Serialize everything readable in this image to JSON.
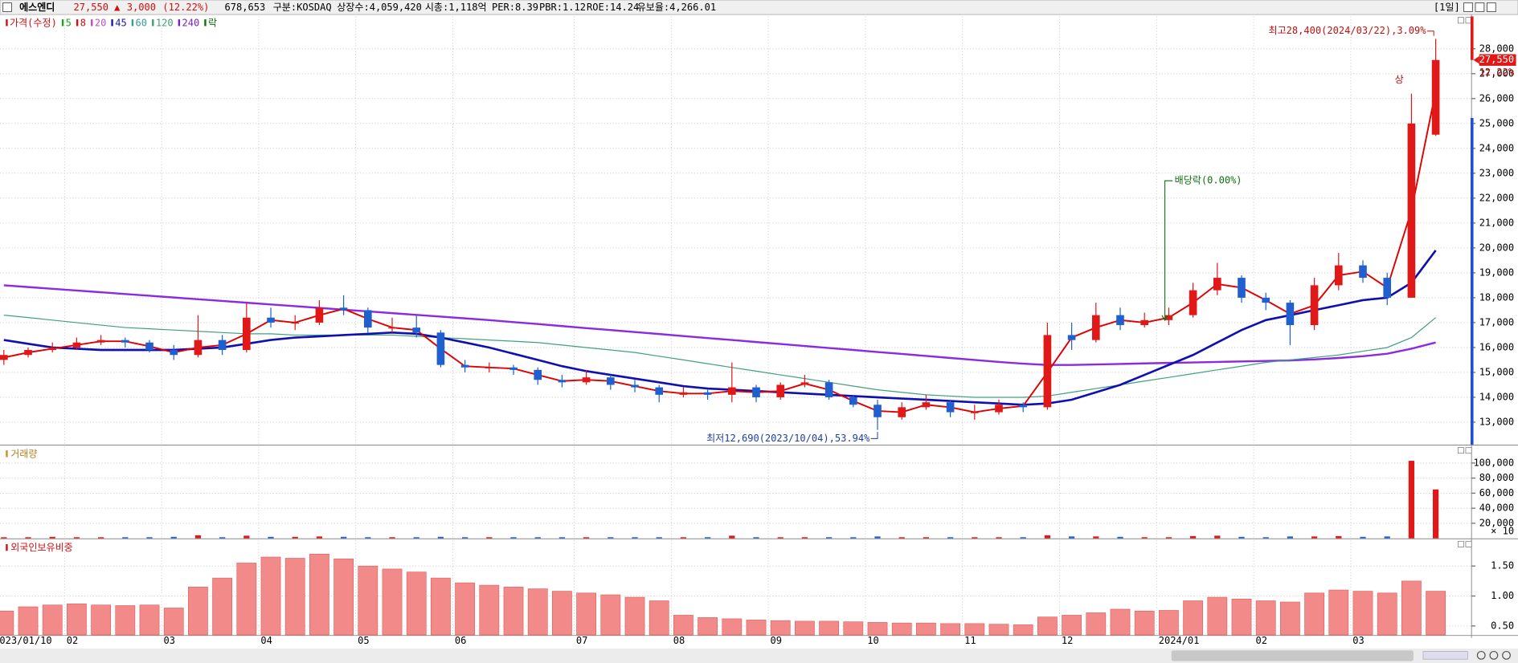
{
  "header": {
    "name": "에스엔디",
    "price": "27,550",
    "arrow": "▲",
    "change": "3,000",
    "change_rate": "(12.22%)",
    "volume": "678,653",
    "market": "구분:KOSDAQ",
    "shares": "상장수:4,059,420",
    "cap": "시총:1,118억",
    "per": "PER:8.39",
    "pbr": "PBR:1.12",
    "roe": "ROE:14.24",
    "reserve": "유보율:4,266.01",
    "period": "[1일]"
  },
  "chart_data": [
    {
      "type": "candlestick",
      "legend": [
        {
          "name": "가격(수정)",
          "color": "#d01010"
        },
        {
          "name": "5",
          "color": "#20a020"
        },
        {
          "name": "8",
          "color": "#d01010"
        },
        {
          "name": "20",
          "color": "#c050c0"
        },
        {
          "name": "45",
          "color": "#1a1ab0"
        },
        {
          "name": "60",
          "color": "#3a9aa0"
        },
        {
          "name": "120",
          "color": "#40a070"
        },
        {
          "name": "240",
          "color": "#7a20c0"
        },
        {
          "name": "락",
          "color": "#107010"
        }
      ],
      "categories": [
        "2023/01/10",
        null,
        null,
        "02",
        null,
        null,
        null,
        "03",
        null,
        null,
        null,
        "04",
        null,
        null,
        null,
        "05",
        null,
        null,
        null,
        "06",
        null,
        null,
        null,
        null,
        "07",
        null,
        null,
        null,
        "08",
        null,
        null,
        null,
        "09",
        null,
        null,
        null,
        "10",
        null,
        null,
        null,
        "11",
        null,
        null,
        null,
        "12",
        null,
        null,
        null,
        "2024/01",
        null,
        null,
        null,
        "02",
        null,
        null,
        null,
        "03",
        null,
        null,
        null
      ],
      "open": [
        15500,
        15700,
        15900,
        16000,
        16200,
        16300,
        16200,
        15900,
        15700,
        16300,
        15900,
        17200,
        17000,
        17000,
        17600,
        17500,
        16800,
        16800,
        16600,
        15300,
        15200,
        15200,
        15100,
        14700,
        14600,
        14800,
        14500,
        14400,
        14100,
        14200,
        14100,
        14400,
        14000,
        14500,
        14600,
        14000,
        13700,
        13200,
        13600,
        13800,
        13400,
        13400,
        13700,
        13600,
        16500,
        16300,
        17300,
        16900,
        17100,
        17300,
        18300,
        18800,
        18000,
        17800,
        16900,
        18500,
        19300,
        18800,
        18000,
        24550
      ],
      "high": [
        15900,
        16000,
        16200,
        16400,
        16500,
        16400,
        16300,
        16100,
        17300,
        16500,
        17800,
        17600,
        17300,
        17900,
        18100,
        17600,
        17200,
        17300,
        16700,
        15500,
        15400,
        15300,
        15200,
        14900,
        15100,
        14900,
        14700,
        14500,
        14400,
        14300,
        15400,
        14500,
        14600,
        14900,
        14700,
        14100,
        13900,
        13800,
        14100,
        13900,
        13700,
        13900,
        13800,
        17000,
        17000,
        17800,
        17600,
        17400,
        17600,
        18600,
        19400,
        18900,
        18200,
        17900,
        18800,
        19800,
        19500,
        19000,
        26200,
        28400
      ],
      "low": [
        15300,
        15600,
        15800,
        15900,
        16100,
        16000,
        15800,
        15500,
        15600,
        15700,
        15800,
        16800,
        16700,
        16900,
        17300,
        16600,
        16600,
        16400,
        15200,
        15000,
        15000,
        14900,
        14500,
        14400,
        14500,
        14300,
        14200,
        13800,
        14000,
        13900,
        13800,
        13800,
        13900,
        14400,
        13900,
        13600,
        12690,
        13100,
        13500,
        13200,
        13100,
        13300,
        13400,
        13500,
        15900,
        16200,
        16700,
        16800,
        16900,
        17200,
        18100,
        17800,
        17500,
        16100,
        16700,
        18300,
        18600,
        17700,
        18000,
        24500
      ],
      "close": [
        15700,
        15900,
        16000,
        16200,
        16300,
        16200,
        15900,
        15700,
        16300,
        15900,
        17200,
        17000,
        17000,
        17600,
        17500,
        16800,
        16800,
        16600,
        15300,
        15200,
        15200,
        15100,
        14700,
        14600,
        14800,
        14500,
        14400,
        14100,
        14200,
        14100,
        14400,
        14000,
        14500,
        14600,
        14000,
        13700,
        13200,
        13600,
        13800,
        13400,
        13400,
        13700,
        13600,
        16500,
        16300,
        17300,
        16900,
        17100,
        17300,
        18300,
        18800,
        18000,
        17800,
        16900,
        18500,
        19300,
        18800,
        18000,
        25000,
        27550
      ],
      "up_color": "#e01818",
      "down_color": "#1f5fd0",
      "series": [
        {
          "color": "#8a2be2",
          "width": 2,
          "values": [
            18500,
            18430,
            18360,
            18290,
            18220,
            18150,
            18080,
            18010,
            17940,
            17870,
            17800,
            17730,
            17660,
            17590,
            17520,
            17450,
            17380,
            17310,
            17240,
            17170,
            17100,
            17020,
            16940,
            16860,
            16780,
            16700,
            16620,
            16540,
            16460,
            16380,
            16300,
            16220,
            16140,
            16060,
            15980,
            15900,
            15820,
            15740,
            15660,
            15580,
            15500,
            15420,
            15350,
            15300,
            15300,
            15320,
            15340,
            15360,
            15380,
            15400,
            15420,
            15440,
            15460,
            15480,
            15520,
            15580,
            15650,
            15750,
            15950,
            16200
          ]
        },
        {
          "color": "#40a080",
          "width": 1,
          "values": [
            17300,
            17200,
            17100,
            17000,
            16900,
            16800,
            16750,
            16700,
            16650,
            16600,
            16550,
            16550,
            16500,
            16500,
            16500,
            16500,
            16500,
            16450,
            16400,
            16350,
            16300,
            16250,
            16200,
            16100,
            16000,
            15900,
            15800,
            15650,
            15500,
            15350,
            15200,
            15050,
            14900,
            14750,
            14600,
            14450,
            14300,
            14200,
            14100,
            14050,
            14000,
            14000,
            14000,
            14050,
            14200,
            14350,
            14500,
            14650,
            14800,
            14950,
            15100,
            15250,
            15400,
            15500,
            15600,
            15700,
            15850,
            16000,
            16400,
            17200
          ]
        },
        {
          "color": "#1010b0",
          "width": 2.2,
          "values": [
            16300,
            16150,
            16000,
            15950,
            15900,
            15900,
            15900,
            15900,
            15950,
            16000,
            16150,
            16300,
            16400,
            16450,
            16500,
            16550,
            16600,
            16550,
            16400,
            16200,
            16000,
            15750,
            15500,
            15250,
            15050,
            14900,
            14750,
            14600,
            14450,
            14350,
            14300,
            14250,
            14200,
            14150,
            14100,
            14050,
            14000,
            13950,
            13900,
            13850,
            13800,
            13750,
            13700,
            13750,
            13900,
            14200,
            14500,
            14900,
            15300,
            15700,
            16200,
            16700,
            17100,
            17300,
            17500,
            17700,
            17900,
            18000,
            18600,
            19900
          ]
        },
        {
          "color": "#e00000",
          "width": 1.6,
          "values": [
            15600,
            15800,
            15950,
            16100,
            16250,
            16250,
            16050,
            15800,
            16000,
            16100,
            16550,
            17100,
            17000,
            17300,
            17550,
            17150,
            16800,
            16700,
            15950,
            15250,
            15200,
            15150,
            14900,
            14650,
            14700,
            14650,
            14450,
            14250,
            14150,
            14150,
            14250,
            14200,
            14250,
            14550,
            14300,
            13850,
            13450,
            13400,
            13700,
            13600,
            13400,
            13550,
            13650,
            15000,
            16400,
            16800,
            17100,
            17000,
            17200,
            17800,
            18550,
            18400,
            17900,
            17350,
            17700,
            18900,
            19050,
            18400,
            21500,
            26300
          ]
        }
      ],
      "ylim": [
        12100,
        29300
      ],
      "yticks": [
        {
          "value": 13000,
          "label": "13,000"
        },
        {
          "value": 14000,
          "label": "14,000"
        },
        {
          "value": 15000,
          "label": "15,000"
        },
        {
          "value": 16000,
          "label": "16,000"
        },
        {
          "value": 17000,
          "label": "17,000"
        },
        {
          "value": 18000,
          "label": "18,000"
        },
        {
          "value": 19000,
          "label": "19,000"
        },
        {
          "value": 20000,
          "label": "20,000"
        },
        {
          "value": 21000,
          "label": "21,000"
        },
        {
          "value": 22000,
          "label": "22,000"
        },
        {
          "value": 23000,
          "label": "23,000"
        },
        {
          "value": 24000,
          "label": "24,000"
        },
        {
          "value": 25000,
          "label": "25,000"
        },
        {
          "value": 26000,
          "label": "26,000"
        },
        {
          "value": 27000,
          "label": "27,000"
        },
        {
          "value": 28000,
          "label": "28,000"
        }
      ],
      "grid": true,
      "high_label": "최고28,400(2024/03/22),3.09%",
      "low_label": "최저12,690(2023/10/04),53.94%",
      "dividend_label": "배당락(0.00%)",
      "limit_label": "상",
      "last_price_label": "27,550",
      "last_change_label": "12.22%"
    },
    {
      "type": "bar",
      "title": "거래량",
      "unit_label": "× 10",
      "values": [
        1500,
        1500,
        2000,
        1500,
        1500,
        1500,
        1500,
        2000,
        4000,
        1500,
        3500,
        2000,
        2000,
        2500,
        2000,
        1500,
        1500,
        1500,
        2000,
        1500,
        1500,
        1500,
        1500,
        1500,
        1500,
        1500,
        1500,
        1500,
        1500,
        1500,
        3500,
        1500,
        1500,
        1500,
        1500,
        1500,
        2500,
        1500,
        1500,
        1500,
        1500,
        1500,
        1500,
        4000,
        2500,
        2500,
        2000,
        1500,
        1500,
        3000,
        3500,
        2000,
        1500,
        2500,
        2500,
        3000,
        2000,
        2500,
        103000,
        65000
      ],
      "ylim": [
        0,
        122000
      ],
      "yticks": [
        {
          "value": 20000,
          "label": "20,000"
        },
        {
          "value": 40000,
          "label": "40,000"
        },
        {
          "value": 60000,
          "label": "60,000"
        },
        {
          "value": 80000,
          "label": "80,000"
        },
        {
          "value": 100000,
          "label": "100,000"
        }
      ],
      "grid": true
    },
    {
      "type": "bar",
      "title": "외국인보유비중",
      "color": "#f28a8a",
      "edge": "#e05a5a",
      "values": [
        0.75,
        0.82,
        0.85,
        0.87,
        0.85,
        0.84,
        0.85,
        0.8,
        1.15,
        1.3,
        1.55,
        1.65,
        1.63,
        1.7,
        1.62,
        1.5,
        1.45,
        1.4,
        1.3,
        1.22,
        1.18,
        1.15,
        1.12,
        1.08,
        1.05,
        1.02,
        0.98,
        0.92,
        0.68,
        0.64,
        0.62,
        0.6,
        0.59,
        0.58,
        0.58,
        0.57,
        0.56,
        0.55,
        0.55,
        0.54,
        0.54,
        0.53,
        0.52,
        0.65,
        0.68,
        0.72,
        0.78,
        0.75,
        0.76,
        0.92,
        0.98,
        0.95,
        0.92,
        0.9,
        1.05,
        1.1,
        1.08,
        1.05,
        1.25,
        1.08
      ],
      "ylim": [
        0.35,
        1.93
      ],
      "yticks": [
        {
          "value": 0.5,
          "label": "0.50"
        },
        {
          "value": 1,
          "label": "1.00"
        },
        {
          "value": 1.5,
          "label": "1.50"
        }
      ],
      "grid": true
    }
  ]
}
